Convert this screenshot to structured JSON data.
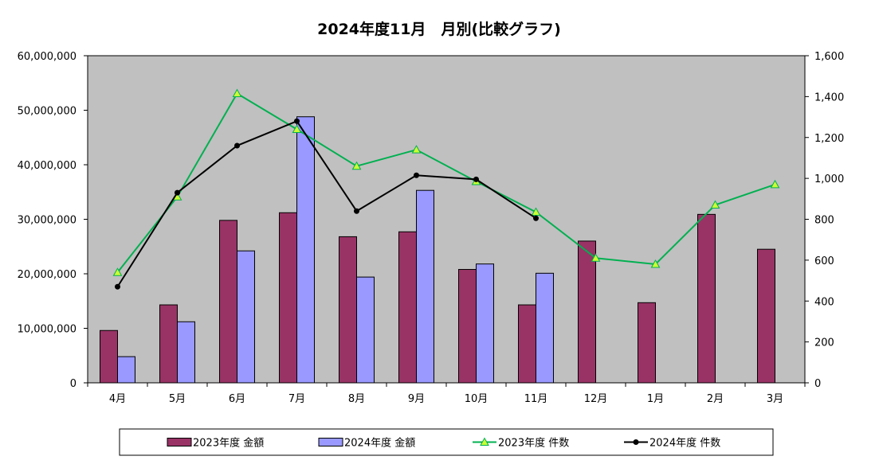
{
  "chart_data": {
    "type": "bar",
    "title": "2024年度11月　月別(比較グラフ)",
    "categories": [
      "4月",
      "5月",
      "6月",
      "7月",
      "8月",
      "9月",
      "10月",
      "11月",
      "12月",
      "1月",
      "2月",
      "3月"
    ],
    "series": [
      {
        "name": "2023年度 金額",
        "type": "bar",
        "axis": "left",
        "color": "#993366",
        "values": [
          9600000,
          14300000,
          29800000,
          31200000,
          26800000,
          27700000,
          20800000,
          14300000,
          26000000,
          14700000,
          30900000,
          24500000
        ]
      },
      {
        "name": "2024年度 金額",
        "type": "bar",
        "axis": "left",
        "color": "#9999ff",
        "values": [
          4800000,
          11200000,
          24200000,
          48800000,
          19400000,
          35300000,
          21800000,
          20100000,
          null,
          null,
          null,
          null
        ]
      },
      {
        "name": "2023年度 件数",
        "type": "line",
        "axis": "right",
        "color": "#00b050",
        "marker_color": "#ccff33",
        "marker": "triangle",
        "values": [
          540,
          910,
          1415,
          1240,
          1060,
          1140,
          985,
          835,
          610,
          580,
          870,
          970
        ]
      },
      {
        "name": "2024年度 件数",
        "type": "line",
        "axis": "right",
        "color": "#000000",
        "marker": "circle",
        "values": [
          470,
          930,
          1160,
          1280,
          840,
          1015,
          995,
          805,
          null,
          null,
          null,
          null
        ]
      }
    ],
    "left_axis": {
      "ylim": [
        0,
        60000000
      ],
      "ticks": [
        "0",
        "10,000,000",
        "20,000,000",
        "30,000,000",
        "40,000,000",
        "50,000,000",
        "60,000,000"
      ]
    },
    "right_axis": {
      "ylim": [
        0,
        1600
      ],
      "ticks": [
        "0",
        "200",
        "400",
        "600",
        "800",
        "1,000",
        "1,200",
        "1,400",
        "1,600"
      ]
    },
    "plot_background": "#c0c0c0",
    "grid": false,
    "legend_position": "bottom"
  }
}
